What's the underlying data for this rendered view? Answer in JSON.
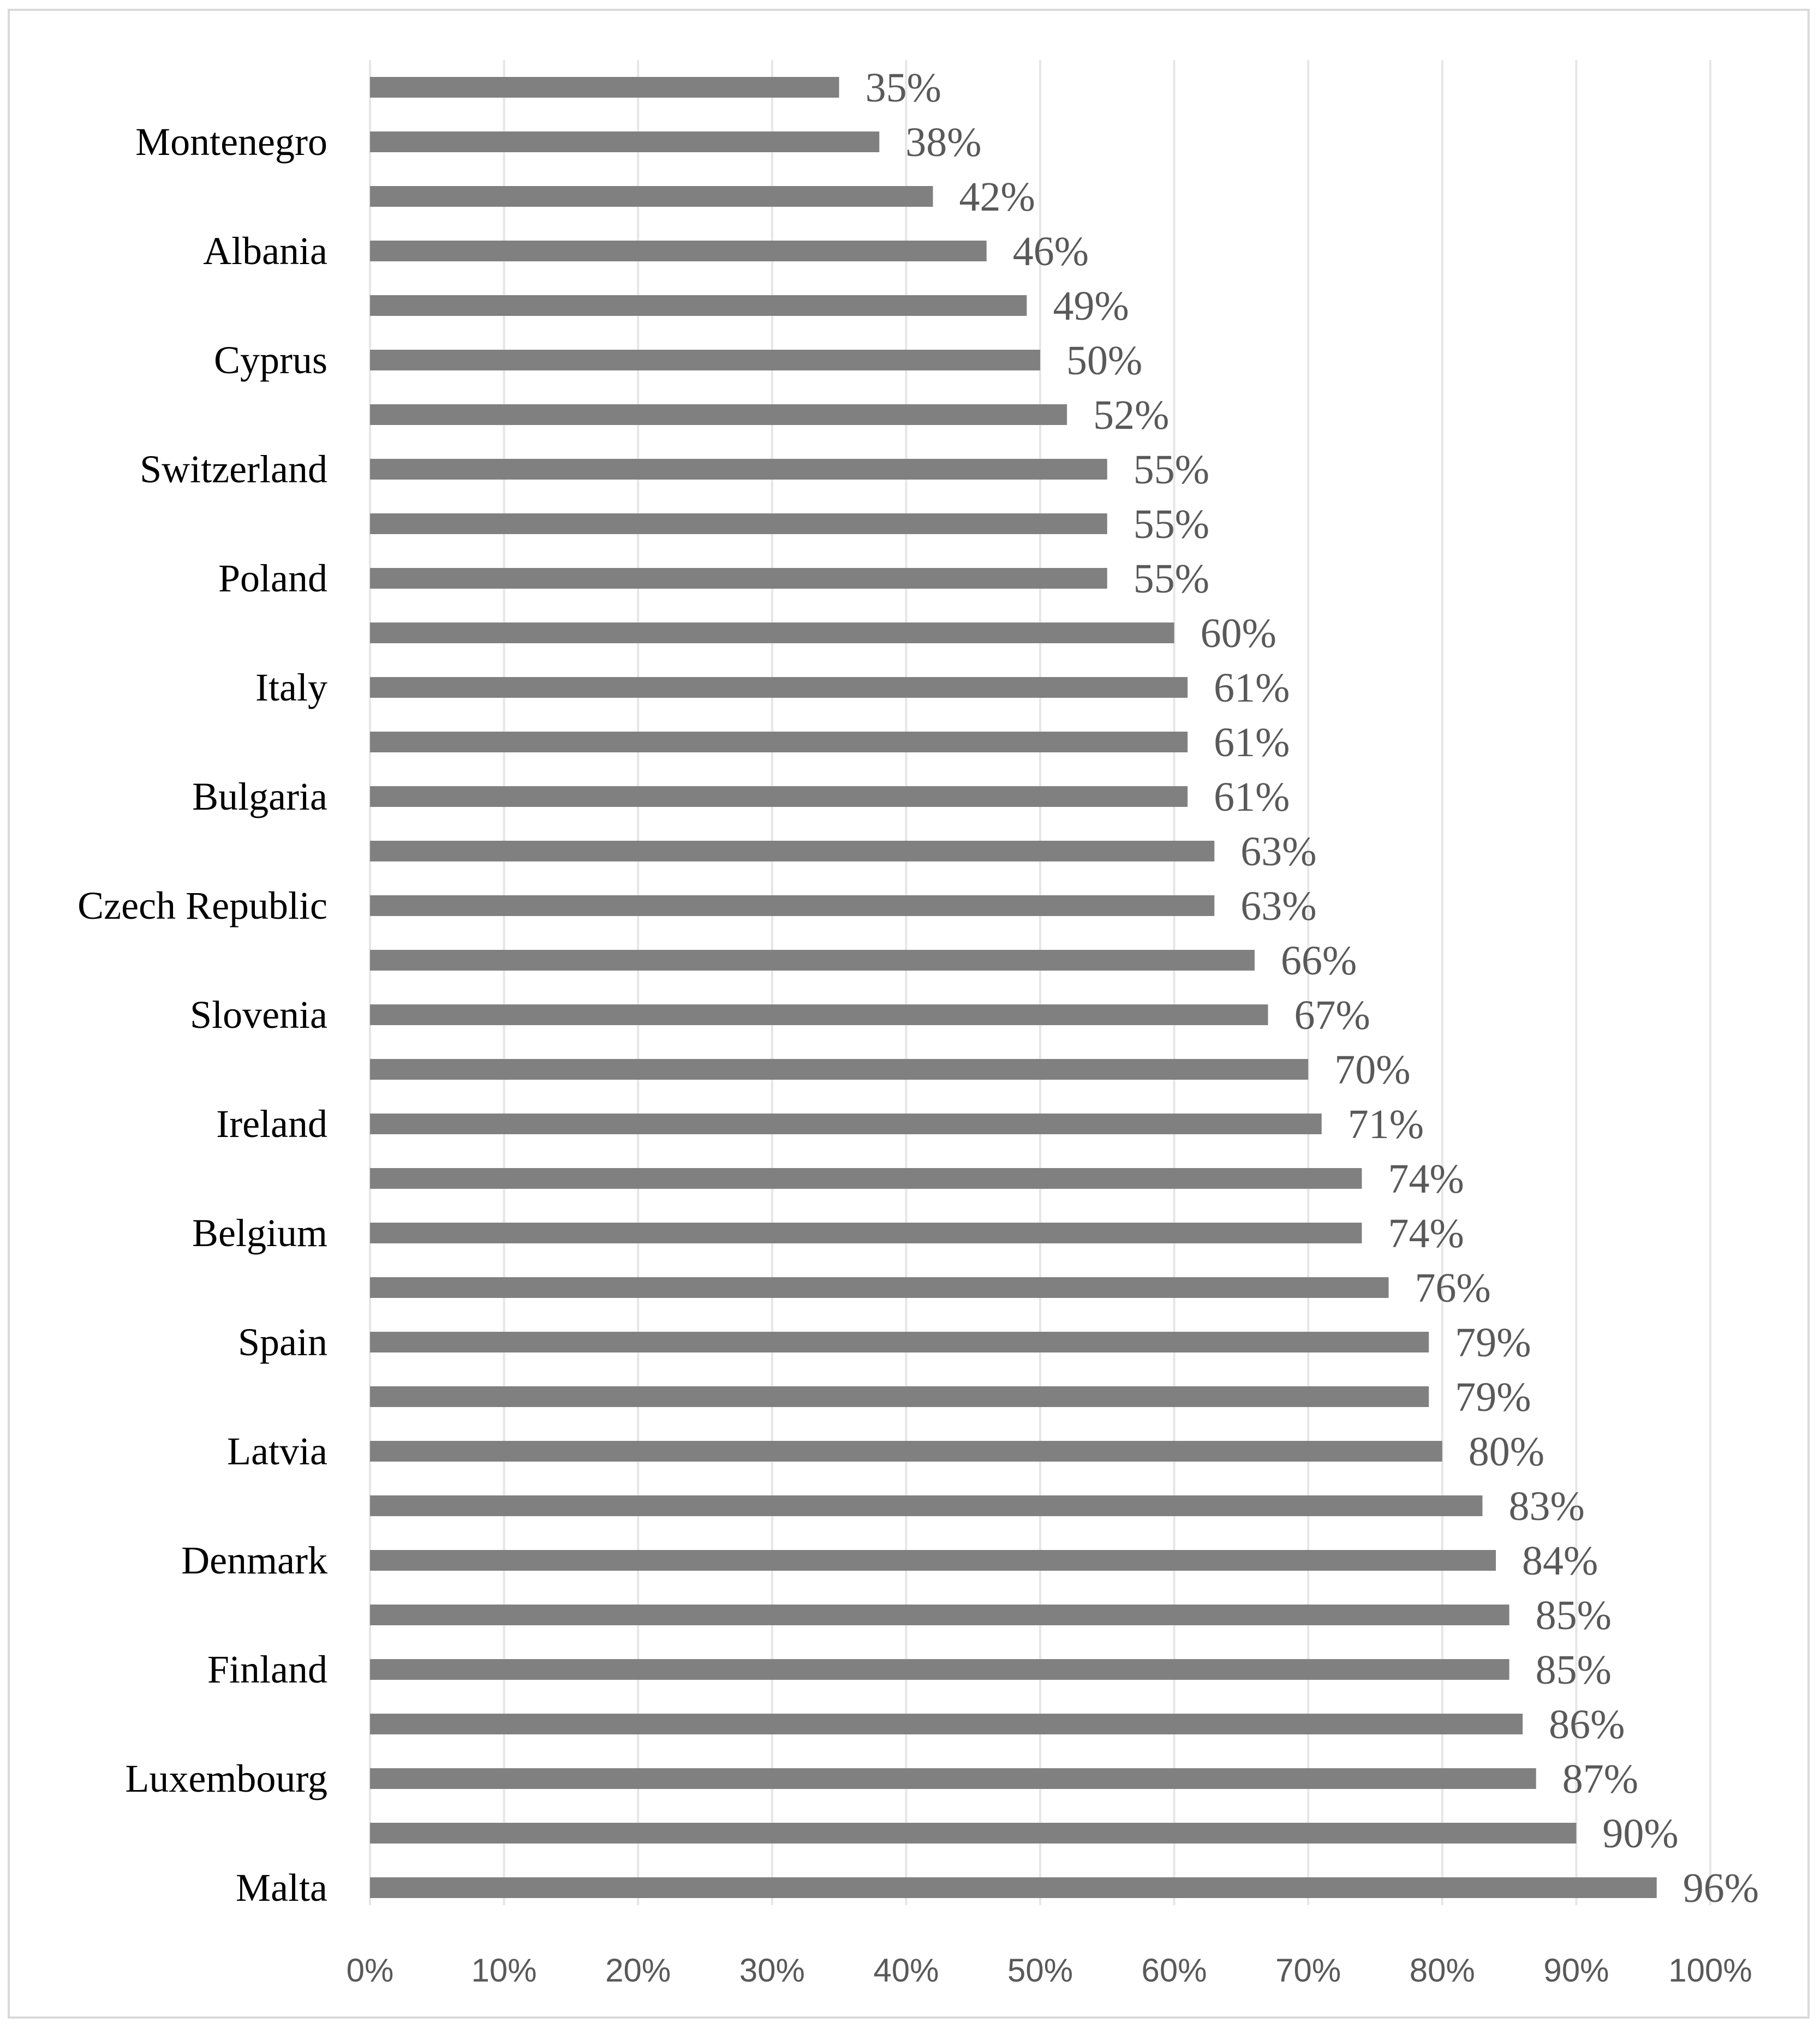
{
  "chart_data": {
    "type": "bar",
    "orientation": "horizontal",
    "title": "",
    "xlabel": "",
    "ylabel": "",
    "xlim": [
      0,
      100
    ],
    "x_ticks": [
      "0%",
      "10%",
      "20%",
      "30%",
      "40%",
      "50%",
      "60%",
      "70%",
      "80%",
      "90%",
      "100%"
    ],
    "grid": true,
    "legend": "none",
    "bar_color": "#808080",
    "grid_color": "#e6e6e6",
    "categories": [
      "",
      "Montenegro",
      "",
      "Albania",
      "",
      "Cyprus",
      "",
      "Switzerland",
      "",
      "Poland",
      "",
      "Italy",
      "",
      "Bulgaria",
      "",
      "Czech Republic",
      "",
      "Slovenia",
      "",
      "Ireland",
      "",
      "Belgium",
      "",
      "Spain",
      "",
      "Latvia",
      "",
      "Denmark",
      "",
      "Finland",
      "",
      "Luxembourg",
      "",
      "Malta"
    ],
    "values": [
      35,
      38,
      42,
      46,
      49,
      50,
      52,
      55,
      55,
      55,
      60,
      61,
      61,
      61,
      63,
      63,
      66,
      67,
      70,
      71,
      74,
      74,
      76,
      79,
      79,
      80,
      83,
      84,
      85,
      85,
      86,
      87,
      90,
      96
    ],
    "data_labels": [
      "35%",
      "38%",
      "42%",
      "46%",
      "49%",
      "50%",
      "52%",
      "55%",
      "55%",
      "55%",
      "60%",
      "61%",
      "61%",
      "61%",
      "63%",
      "63%",
      "66%",
      "67%",
      "70%",
      "71%",
      "74%",
      "74%",
      "76%",
      "79%",
      "79%",
      "80%",
      "83%",
      "84%",
      "85%",
      "85%",
      "86%",
      "87%",
      "90%",
      "96%"
    ]
  }
}
